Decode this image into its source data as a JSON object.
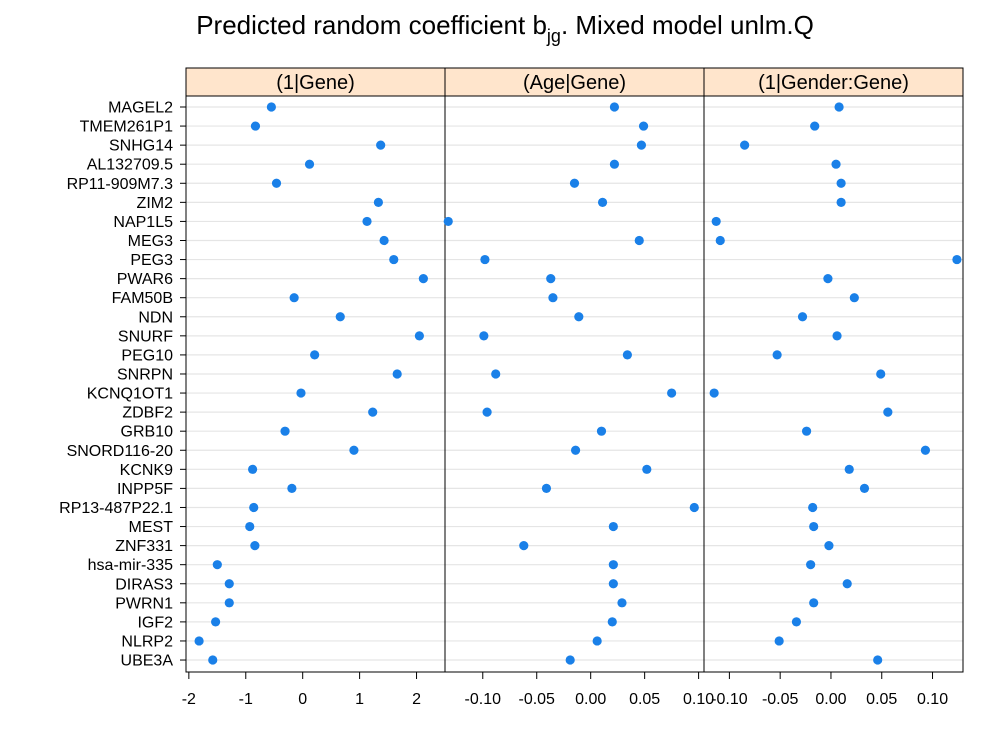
{
  "title": {
    "main": "Predicted random coefficient b",
    "subscript": "jg",
    "suffix": ".  Mixed model unlm.Q"
  },
  "colors": {
    "point": "#1a80e8",
    "strip": "#ffe5cc",
    "grid": "#e5e5e5",
    "axis": "#000000"
  },
  "chart_data": {
    "type": "scatter",
    "genes": [
      "MAGEL2",
      "TMEM261P1",
      "SNHG14",
      "AL132709.5",
      "RP11-909M7.3",
      "ZIM2",
      "NAP1L5",
      "MEG3",
      "PEG3",
      "PWAR6",
      "FAM50B",
      "NDN",
      "SNURF",
      "PEG10",
      "SNRPN",
      "KCNQ1OT1",
      "ZDBF2",
      "GRB10",
      "SNORD116-20",
      "KCNK9",
      "INPP5F",
      "RP13-487P22.1",
      "MEST",
      "ZNF331",
      "hsa-mir-335",
      "DIRAS3",
      "PWRN1",
      "IGF2",
      "NLRP2",
      "UBE3A"
    ],
    "panels": [
      {
        "name": "(1|Gene)",
        "xlim": [
          -2.05,
          2.5
        ],
        "ticks": [
          -2,
          -1,
          0,
          1,
          2
        ],
        "tick_labels": [
          "-2",
          "-1",
          "0",
          "1",
          "2"
        ],
        "values": [
          -0.55,
          -0.83,
          1.37,
          0.12,
          -0.46,
          1.33,
          1.13,
          1.43,
          1.6,
          2.12,
          -0.15,
          0.66,
          2.05,
          0.21,
          1.66,
          -0.03,
          1.23,
          -0.31,
          0.9,
          -0.88,
          -0.19,
          -0.86,
          -0.93,
          -0.84,
          -1.5,
          -1.29,
          -1.29,
          -1.53,
          -1.82,
          -1.58
        ]
      },
      {
        "name": "(Age|Gene)",
        "xlim": [
          -0.135,
          0.105
        ],
        "ticks": [
          -0.1,
          -0.05,
          0.0,
          0.05,
          0.1
        ],
        "tick_labels": [
          "-0.10",
          "-0.05",
          "0.00",
          "0.05",
          "0.10"
        ],
        "values": [
          0.022,
          0.049,
          0.047,
          0.022,
          -0.015,
          0.011,
          -0.132,
          0.045,
          -0.098,
          -0.037,
          -0.035,
          -0.011,
          -0.099,
          0.034,
          -0.088,
          0.075,
          -0.096,
          0.01,
          -0.014,
          0.052,
          -0.041,
          0.096,
          0.021,
          -0.062,
          0.021,
          0.021,
          0.029,
          0.02,
          0.006,
          -0.019
        ]
      },
      {
        "name": "(1|Gender:Gene)",
        "xlim": [
          -0.125,
          0.13
        ],
        "ticks": [
          -0.1,
          -0.05,
          0.0,
          0.05,
          0.1
        ],
        "tick_labels": [
          "-0.10",
          "-0.05",
          "0.00",
          "0.05",
          "0.10"
        ],
        "values": [
          0.008,
          -0.016,
          -0.085,
          0.005,
          0.01,
          0.01,
          -0.113,
          -0.109,
          0.124,
          -0.003,
          0.023,
          -0.028,
          0.006,
          -0.053,
          0.049,
          -0.115,
          0.056,
          -0.024,
          0.093,
          0.018,
          0.033,
          -0.018,
          -0.017,
          -0.002,
          -0.02,
          0.016,
          -0.017,
          -0.034,
          -0.051,
          0.046
        ]
      }
    ]
  }
}
